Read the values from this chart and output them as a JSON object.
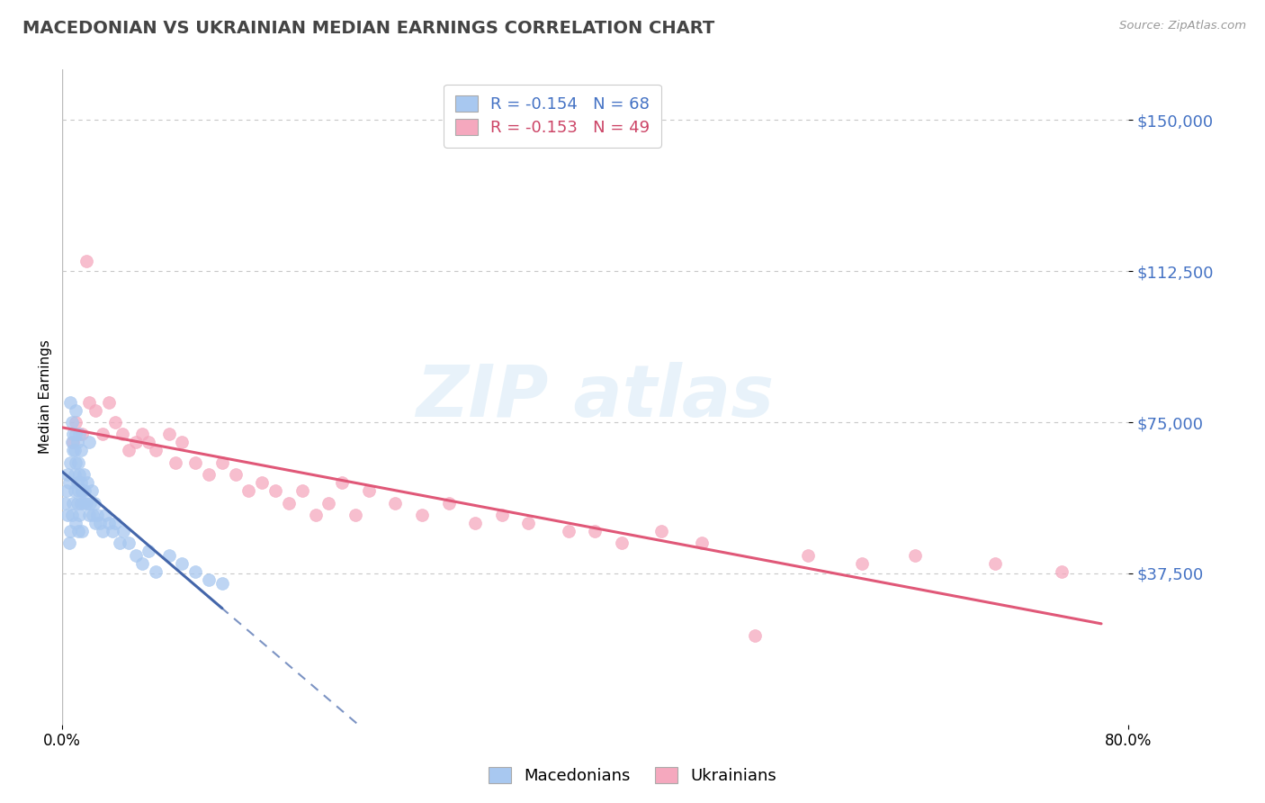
{
  "title": "MACEDONIAN VS UKRAINIAN MEDIAN EARNINGS CORRELATION CHART",
  "source": "Source: ZipAtlas.com",
  "ylabel": "Median Earnings",
  "xlim": [
    0.0,
    0.8
  ],
  "ylim": [
    0,
    162500
  ],
  "ytick_vals": [
    37500,
    75000,
    112500,
    150000
  ],
  "legend_label1": "Macedonians",
  "legend_label2": "Ukrainians",
  "mac_color": "#a8c8f0",
  "ukr_color": "#f5a8be",
  "mac_trend_color": "#4466aa",
  "ukr_trend_color": "#e05878",
  "background_color": "#ffffff",
  "grid_color": "#c8c8c8",
  "title_color": "#444444",
  "ytick_color": "#4472c4",
  "legend_text_color1": "#4472c4",
  "legend_text_color2": "#cc4466",
  "macedonians_x": [
    0.002,
    0.003,
    0.004,
    0.004,
    0.005,
    0.005,
    0.006,
    0.006,
    0.007,
    0.007,
    0.008,
    0.008,
    0.009,
    0.009,
    0.01,
    0.01,
    0.01,
    0.011,
    0.011,
    0.012,
    0.012,
    0.013,
    0.013,
    0.014,
    0.014,
    0.015,
    0.015,
    0.016,
    0.016,
    0.017,
    0.018,
    0.019,
    0.02,
    0.021,
    0.022,
    0.023,
    0.024,
    0.025,
    0.026,
    0.028,
    0.03,
    0.032,
    0.035,
    0.038,
    0.04,
    0.043,
    0.046,
    0.05,
    0.055,
    0.06,
    0.065,
    0.07,
    0.08,
    0.09,
    0.1,
    0.11,
    0.12,
    0.006,
    0.007,
    0.008,
    0.009,
    0.01,
    0.011,
    0.012,
    0.013,
    0.014,
    0.015,
    0.02
  ],
  "macedonians_y": [
    55000,
    58000,
    52000,
    62000,
    60000,
    45000,
    65000,
    48000,
    70000,
    52000,
    68000,
    55000,
    58000,
    62000,
    72000,
    65000,
    50000,
    60000,
    55000,
    58000,
    48000,
    62000,
    52000,
    55000,
    60000,
    58000,
    48000,
    62000,
    55000,
    58000,
    55000,
    60000,
    52000,
    55000,
    58000,
    52000,
    55000,
    50000,
    52000,
    50000,
    48000,
    52000,
    50000,
    48000,
    50000,
    45000,
    48000,
    45000,
    42000,
    40000,
    43000,
    38000,
    42000,
    40000,
    38000,
    36000,
    35000,
    80000,
    75000,
    72000,
    68000,
    78000,
    70000,
    65000,
    72000,
    68000,
    58000,
    70000
  ],
  "ukrainians_x": [
    0.008,
    0.01,
    0.015,
    0.018,
    0.02,
    0.025,
    0.03,
    0.035,
    0.04,
    0.045,
    0.05,
    0.055,
    0.06,
    0.065,
    0.07,
    0.08,
    0.085,
    0.09,
    0.1,
    0.11,
    0.12,
    0.13,
    0.14,
    0.15,
    0.16,
    0.17,
    0.18,
    0.19,
    0.2,
    0.21,
    0.22,
    0.23,
    0.25,
    0.27,
    0.29,
    0.31,
    0.33,
    0.35,
    0.38,
    0.4,
    0.42,
    0.45,
    0.48,
    0.52,
    0.56,
    0.6,
    0.64,
    0.7,
    0.75
  ],
  "ukrainians_y": [
    70000,
    75000,
    72000,
    115000,
    80000,
    78000,
    72000,
    80000,
    75000,
    72000,
    68000,
    70000,
    72000,
    70000,
    68000,
    72000,
    65000,
    70000,
    65000,
    62000,
    65000,
    62000,
    58000,
    60000,
    58000,
    55000,
    58000,
    52000,
    55000,
    60000,
    52000,
    58000,
    55000,
    52000,
    55000,
    50000,
    52000,
    50000,
    48000,
    48000,
    45000,
    48000,
    45000,
    22000,
    42000,
    40000,
    42000,
    40000,
    38000
  ]
}
